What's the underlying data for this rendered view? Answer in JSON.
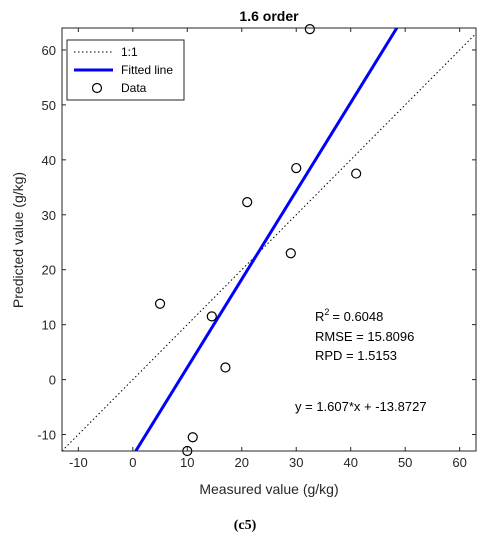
{
  "chart_data": {
    "type": "scatter",
    "title": "1.6 order",
    "xlabel": "Measured value (g/kg)",
    "ylabel": "Predicted value (g/kg)",
    "xlim": [
      -13,
      63
    ],
    "ylim": [
      -13,
      64
    ],
    "xticks": [
      -10,
      0,
      10,
      20,
      30,
      40,
      50,
      60
    ],
    "yticks": [
      -10,
      0,
      10,
      20,
      30,
      40,
      50,
      60
    ],
    "grid": false,
    "legend_position": "top-left",
    "series": [
      {
        "name": "1:1",
        "kind": "line",
        "style": "dotted",
        "color": "#000000",
        "x": [
          -13,
          63
        ],
        "y": [
          -13,
          63
        ]
      },
      {
        "name": "Fitted line",
        "kind": "line",
        "style": "solid",
        "color": "#0000ff",
        "slope": 1.607,
        "intercept": -13.8727
      },
      {
        "name": "Data",
        "kind": "scatter",
        "marker": "open-circle",
        "color": "#000000",
        "points": [
          [
            5,
            13.8
          ],
          [
            10,
            -13
          ],
          [
            11,
            -10.5
          ],
          [
            14.5,
            11.5
          ],
          [
            17,
            2.2
          ],
          [
            21,
            32.3
          ],
          [
            29,
            23
          ],
          [
            30,
            38.5
          ],
          [
            32.5,
            63.8
          ],
          [
            41,
            37.5
          ]
        ]
      }
    ],
    "stats": {
      "r2": "R<sup>2</sup>",
      "r2_label": "R",
      "r2_sup": "2",
      "r2_value": "=  0.6048",
      "rmse": "RMSE = 15.8096",
      "rpd": "RPD = 1.5153"
    },
    "equation": "y = 1.607*x + -13.8727"
  },
  "caption": "(c5)"
}
